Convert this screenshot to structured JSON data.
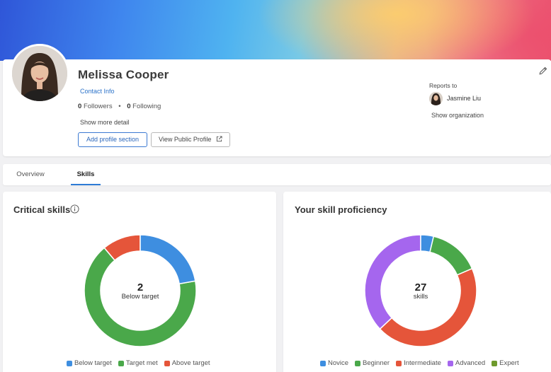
{
  "profile": {
    "name": "Melissa Cooper",
    "contact_info": "Contact Info",
    "followers_count": "0",
    "followers_label": "Followers",
    "following_count": "0",
    "following_label": "Following",
    "show_more": "Show more detail",
    "add_section": "Add profile section",
    "view_public": "View Public Profile"
  },
  "reports_to": {
    "label": "Reports to",
    "manager_name": "Jasmine Liu",
    "show_org": "Show organization"
  },
  "tabs": [
    {
      "label": "Overview",
      "active": false
    },
    {
      "label": "Skills",
      "active": true
    }
  ],
  "critical_skills": {
    "title": "Critical skills",
    "center_value": "2",
    "center_label": "Below target",
    "chart_data": {
      "type": "pie",
      "categories": [
        "Below target",
        "Target met",
        "Above target"
      ],
      "values": [
        2,
        6,
        1
      ],
      "colors": [
        "#3e8ee0",
        "#4aa84a",
        "#e5553a"
      ]
    }
  },
  "proficiency": {
    "title": "Your skill proficiency",
    "center_value": "27",
    "center_label": "skills",
    "chart_data": {
      "type": "pie",
      "categories": [
        "Novice",
        "Beginner",
        "Intermediate",
        "Advanced",
        "Expert"
      ],
      "values": [
        1,
        4,
        12,
        10,
        0
      ],
      "colors": [
        "#3e8ee0",
        "#4aa84a",
        "#e5553a",
        "#a566ee",
        "#6e9a2c"
      ]
    }
  }
}
